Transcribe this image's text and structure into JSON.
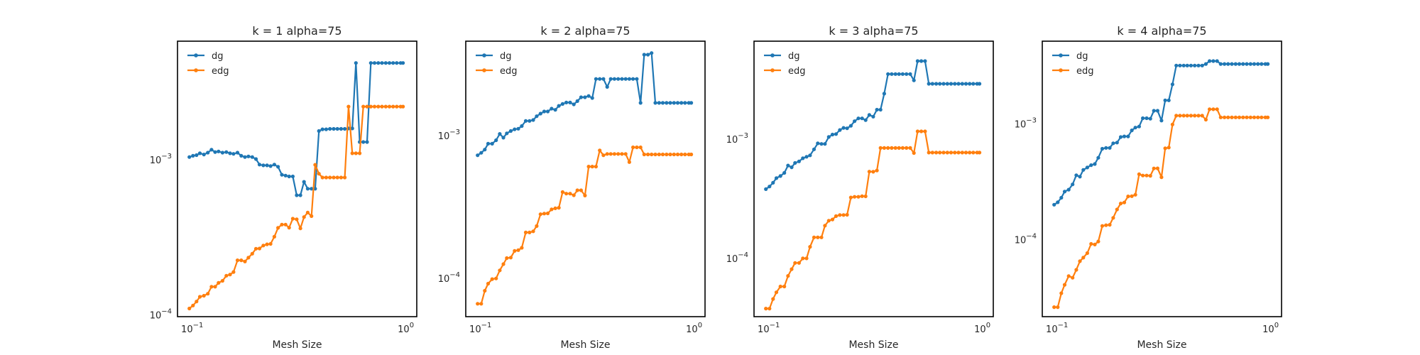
{
  "colors": {
    "dg": "#1f77b4",
    "edg": "#ff7f0e"
  },
  "chart_data": [
    {
      "type": "line",
      "title": "k = 1 alpha=75",
      "xlabel": "Mesh Size",
      "ylabel": "",
      "xscale": "log",
      "yscale": "log",
      "xlim": [
        0.088,
        1.16
      ],
      "ylim": [
        9.75e-05,
        0.0058
      ],
      "xticks": [
        {
          "value": 0.1,
          "label": "10^-1"
        },
        {
          "value": 1,
          "label": "10^0"
        }
      ],
      "yticks": [
        {
          "value": 0.0001,
          "label": "10^-4"
        },
        {
          "value": 0.001,
          "label": "10^-3"
        }
      ],
      "legend": "top-left",
      "grid": false,
      "x": [
        0.1,
        0.104,
        0.108,
        0.112,
        0.117,
        0.122,
        0.127,
        0.132,
        0.137,
        0.143,
        0.149,
        0.155,
        0.161,
        0.168,
        0.175,
        0.182,
        0.189,
        0.197,
        0.205,
        0.213,
        0.222,
        0.231,
        0.24,
        0.25,
        0.26,
        0.271,
        0.282,
        0.293,
        0.305,
        0.318,
        0.331,
        0.344,
        0.358,
        0.373,
        0.388,
        0.404,
        0.42,
        0.437,
        0.455,
        0.474,
        0.493,
        0.513,
        0.534,
        0.556,
        0.579,
        0.602,
        0.627,
        0.652,
        0.679,
        0.707,
        0.736,
        0.766,
        0.797,
        0.83,
        0.864,
        0.899,
        0.935,
        0.974,
        1.0
      ],
      "series": [
        {
          "name": "dg",
          "values": [
            0.00104,
            0.00106,
            0.00107,
            0.0011,
            0.00108,
            0.00111,
            0.00116,
            0.00112,
            0.00113,
            0.00111,
            0.00112,
            0.0011,
            0.00109,
            0.00111,
            0.00106,
            0.00104,
            0.00105,
            0.00104,
            0.00101,
            0.00093,
            0.00092,
            0.00092,
            0.00091,
            0.00093,
            0.0009,
            0.0008,
            0.00079,
            0.00078,
            0.00078,
            0.00059,
            0.00059,
            0.00072,
            0.00065,
            0.00065,
            0.00065,
            0.00153,
            0.00157,
            0.00157,
            0.00158,
            0.00158,
            0.00158,
            0.00158,
            0.00158,
            0.00159,
            0.00159,
            0.0042,
            0.0013,
            0.0013,
            0.0013,
            0.0042,
            0.0042,
            0.0042,
            0.0042,
            0.0042,
            0.0042,
            0.0042,
            0.0042,
            0.0042,
            0.0042
          ]
        },
        {
          "name": "edg",
          "values": [
            0.00011,
            0.000115,
            0.000122,
            0.000131,
            0.000133,
            0.000137,
            0.000152,
            0.000152,
            0.000161,
            0.000166,
            0.000179,
            0.000182,
            0.000189,
            0.000225,
            0.000225,
            0.000221,
            0.000234,
            0.000248,
            0.000267,
            0.000268,
            0.00028,
            0.000285,
            0.000287,
            0.000319,
            0.000364,
            0.000382,
            0.000382,
            0.000365,
            0.000417,
            0.000413,
            0.000361,
            0.000427,
            0.000457,
            0.000433,
            0.000927,
            0.000812,
            0.000768,
            0.000768,
            0.000768,
            0.000768,
            0.000768,
            0.000768,
            0.000768,
            0.0022,
            0.0011,
            0.0011,
            0.0011,
            0.0022,
            0.0022,
            0.0022,
            0.0022,
            0.0022,
            0.0022,
            0.0022,
            0.0022,
            0.0022,
            0.0022,
            0.0022,
            0.0022
          ]
        }
      ]
    },
    {
      "type": "line",
      "title": "k = 2 alpha=75",
      "xlabel": "Mesh Size",
      "ylabel": "",
      "xscale": "log",
      "yscale": "log",
      "xlim": [
        0.088,
        1.16
      ],
      "ylim": [
        5.4e-05,
        0.0046
      ],
      "xticks": [
        {
          "value": 0.1,
          "label": "10^-1"
        },
        {
          "value": 1,
          "label": "10^0"
        }
      ],
      "yticks": [
        {
          "value": 0.0001,
          "label": "10^-4"
        },
        {
          "value": 0.001,
          "label": "10^-3"
        }
      ],
      "legend": "top-left",
      "grid": false,
      "x": [
        0.1,
        0.104,
        0.108,
        0.112,
        0.117,
        0.122,
        0.127,
        0.132,
        0.137,
        0.143,
        0.149,
        0.155,
        0.161,
        0.168,
        0.175,
        0.182,
        0.189,
        0.197,
        0.205,
        0.213,
        0.222,
        0.231,
        0.24,
        0.25,
        0.26,
        0.271,
        0.282,
        0.293,
        0.305,
        0.318,
        0.331,
        0.344,
        0.358,
        0.373,
        0.388,
        0.404,
        0.42,
        0.437,
        0.455,
        0.474,
        0.493,
        0.513,
        0.534,
        0.556,
        0.579,
        0.602,
        0.627,
        0.652,
        0.679,
        0.707,
        0.736,
        0.766,
        0.797,
        0.83,
        0.864,
        0.899,
        0.935,
        0.974,
        1.0
      ],
      "series": [
        {
          "name": "dg",
          "values": [
            0.00073,
            0.00076,
            0.0008,
            0.00088,
            0.00088,
            0.00093,
            0.00103,
            0.00097,
            0.00104,
            0.00108,
            0.00111,
            0.00112,
            0.00117,
            0.00127,
            0.00127,
            0.00129,
            0.00137,
            0.00143,
            0.00148,
            0.00148,
            0.00155,
            0.00152,
            0.00162,
            0.00167,
            0.00171,
            0.00171,
            0.00166,
            0.00175,
            0.00186,
            0.00186,
            0.0019,
            0.00184,
            0.0025,
            0.0025,
            0.0025,
            0.0022,
            0.0025,
            0.0025,
            0.0025,
            0.0025,
            0.0025,
            0.0025,
            0.0025,
            0.0025,
            0.0017,
            0.0037,
            0.0037,
            0.0038,
            0.0017,
            0.0017,
            0.0017,
            0.0017,
            0.0017,
            0.0017,
            0.0017,
            0.0017,
            0.0017,
            0.0017,
            0.0017
          ]
        },
        {
          "name": "edg",
          "values": [
            6.65e-05,
            6.65e-05,
            8.2e-05,
            9.2e-05,
            9.9e-05,
            0.0001,
            0.000114,
            0.000126,
            0.000139,
            0.00014,
            0.000156,
            0.000158,
            0.000164,
            0.00021,
            0.00021,
            0.000214,
            0.000233,
            0.000282,
            0.000285,
            0.000286,
            0.000305,
            0.00031,
            0.000313,
            0.000403,
            0.000393,
            0.000393,
            0.000383,
            0.000415,
            0.000415,
            0.000381,
            0.000608,
            0.000608,
            0.000608,
            0.00079,
            0.00073,
            0.000746,
            0.000746,
            0.000746,
            0.000746,
            0.000746,
            0.000746,
            0.000654,
            0.00083,
            0.00083,
            0.00083,
            0.00074,
            0.00074,
            0.00074,
            0.00074,
            0.00074,
            0.00074,
            0.00074,
            0.00074,
            0.00074,
            0.00074,
            0.00074,
            0.00074,
            0.00074,
            0.00074
          ]
        }
      ]
    },
    {
      "type": "line",
      "title": "k = 3 alpha=75",
      "xlabel": "Mesh Size",
      "ylabel": "",
      "xscale": "log",
      "yscale": "log",
      "xlim": [
        0.088,
        1.16
      ],
      "ylim": [
        3.25e-05,
        0.0066
      ],
      "xticks": [
        {
          "value": 0.1,
          "label": "10^-1"
        },
        {
          "value": 1,
          "label": "10^0"
        }
      ],
      "yticks": [
        {
          "value": 0.0001,
          "label": "10^-4"
        },
        {
          "value": 0.001,
          "label": "10^-3"
        }
      ],
      "legend": "top-left",
      "grid": false,
      "x": [
        0.1,
        0.104,
        0.108,
        0.112,
        0.117,
        0.122,
        0.127,
        0.132,
        0.137,
        0.143,
        0.149,
        0.155,
        0.161,
        0.168,
        0.175,
        0.182,
        0.189,
        0.197,
        0.205,
        0.213,
        0.222,
        0.231,
        0.24,
        0.25,
        0.26,
        0.271,
        0.282,
        0.293,
        0.305,
        0.318,
        0.331,
        0.344,
        0.358,
        0.373,
        0.388,
        0.404,
        0.42,
        0.437,
        0.455,
        0.474,
        0.493,
        0.513,
        0.534,
        0.556,
        0.579,
        0.602,
        0.627,
        0.652,
        0.679,
        0.707,
        0.736,
        0.766,
        0.797,
        0.83,
        0.864,
        0.899,
        0.935,
        0.974,
        1.0
      ],
      "series": [
        {
          "name": "dg",
          "values": [
            0.00038,
            0.0004,
            0.00043,
            0.00047,
            0.00049,
            0.00052,
            0.0006,
            0.00058,
            0.00063,
            0.00065,
            0.00069,
            0.00071,
            0.00073,
            0.00082,
            0.00092,
            0.00091,
            0.00091,
            0.00104,
            0.00109,
            0.0011,
            0.00119,
            0.00124,
            0.00123,
            0.00129,
            0.00141,
            0.00149,
            0.00149,
            0.00144,
            0.00159,
            0.00154,
            0.00176,
            0.00176,
            0.0024,
            0.0035,
            0.0035,
            0.0035,
            0.0035,
            0.0035,
            0.0035,
            0.0035,
            0.0031,
            0.0045,
            0.0045,
            0.0045,
            0.0029,
            0.0029,
            0.0029,
            0.0029,
            0.0029,
            0.0029,
            0.0029,
            0.0029,
            0.0029,
            0.0029,
            0.0029,
            0.0029,
            0.0029,
            0.0029,
            0.0029
          ]
        },
        {
          "name": "edg",
          "values": [
            3.8e-05,
            3.8e-05,
            4.57e-05,
            5.2e-05,
            5.82e-05,
            5.82e-05,
            7.13e-05,
            8.12e-05,
            9.17e-05,
            9.17e-05,
            0.0001,
            0.0001,
            0.000125,
            0.00015,
            0.00015,
            0.00015,
            0.000188,
            0.000207,
            0.000212,
            0.000226,
            0.000231,
            0.000231,
            0.000232,
            0.000324,
            0.000328,
            0.000328,
            0.000332,
            0.000331,
            0.000533,
            0.000532,
            0.000545,
            0.000841,
            0.000841,
            0.000841,
            0.000841,
            0.000841,
            0.000841,
            0.000841,
            0.000841,
            0.000841,
            0.000763,
            0.00116,
            0.00116,
            0.00116,
            0.00077,
            0.00077,
            0.00077,
            0.00077,
            0.00077,
            0.00077,
            0.00077,
            0.00077,
            0.00077,
            0.00077,
            0.00077,
            0.00077,
            0.00077,
            0.00077,
            0.00077
          ]
        }
      ]
    },
    {
      "type": "line",
      "title": "k = 4 alpha=75",
      "xlabel": "Mesh Size",
      "ylabel": "",
      "xscale": "log",
      "yscale": "log",
      "xlim": [
        0.088,
        1.16
      ],
      "ylim": [
        2.15e-05,
        0.0052
      ],
      "xticks": [
        {
          "value": 0.1,
          "label": "10^-1"
        },
        {
          "value": 1,
          "label": "10^0"
        }
      ],
      "yticks": [
        {
          "value": 0.0001,
          "label": "10^-4"
        },
        {
          "value": 0.001,
          "label": "10^-3"
        }
      ],
      "legend": "top-left",
      "grid": false,
      "x": [
        0.1,
        0.104,
        0.108,
        0.112,
        0.117,
        0.122,
        0.127,
        0.132,
        0.137,
        0.143,
        0.149,
        0.155,
        0.161,
        0.168,
        0.175,
        0.182,
        0.189,
        0.197,
        0.205,
        0.213,
        0.222,
        0.231,
        0.24,
        0.25,
        0.26,
        0.271,
        0.282,
        0.293,
        0.305,
        0.318,
        0.331,
        0.344,
        0.358,
        0.373,
        0.388,
        0.404,
        0.42,
        0.437,
        0.455,
        0.474,
        0.493,
        0.513,
        0.534,
        0.556,
        0.579,
        0.602,
        0.627,
        0.652,
        0.679,
        0.707,
        0.736,
        0.766,
        0.797,
        0.83,
        0.864,
        0.899,
        0.935,
        0.974,
        1.0
      ],
      "series": [
        {
          "name": "dg",
          "values": [
            0.0002,
            0.00021,
            0.00023,
            0.00026,
            0.00027,
            0.0003,
            0.00036,
            0.00035,
            0.0004,
            0.00042,
            0.00044,
            0.00045,
            0.00051,
            0.00061,
            0.00062,
            0.00062,
            0.00068,
            0.00069,
            0.00077,
            0.00078,
            0.00078,
            0.00088,
            0.00093,
            0.00095,
            0.00112,
            0.00112,
            0.00111,
            0.0013,
            0.0013,
            0.00107,
            0.0016,
            0.0016,
            0.0022,
            0.0032,
            0.0032,
            0.0032,
            0.0032,
            0.0032,
            0.0032,
            0.0032,
            0.0032,
            0.0033,
            0.0035,
            0.0035,
            0.0035,
            0.0033,
            0.0033,
            0.0033,
            0.0033,
            0.0033,
            0.0033,
            0.0033,
            0.0033,
            0.0033,
            0.0033,
            0.0033,
            0.0033,
            0.0033,
            0.0033
          ]
        },
        {
          "name": "edg",
          "values": [
            2.6e-05,
            2.6e-05,
            3.43e-05,
            4.06e-05,
            4.83e-05,
            4.67e-05,
            5.47e-05,
            6.49e-05,
            6.97e-05,
            7.62e-05,
            9.16e-05,
            9.05e-05,
            9.62e-05,
            0.000131,
            0.000133,
            0.000134,
            0.000154,
            0.000182,
            0.000205,
            0.000209,
            0.000236,
            0.000237,
            0.000244,
            0.000367,
            0.000358,
            0.000358,
            0.000356,
            0.000412,
            0.000413,
            0.000346,
            0.000615,
            0.000625,
            0.00099,
            0.00118,
            0.00118,
            0.00118,
            0.00118,
            0.00118,
            0.00118,
            0.00118,
            0.00118,
            0.00109,
            0.00134,
            0.00134,
            0.00134,
            0.00114,
            0.00114,
            0.00114,
            0.00114,
            0.00114,
            0.00114,
            0.00114,
            0.00114,
            0.00114,
            0.00114,
            0.00114,
            0.00114,
            0.00114,
            0.00114
          ]
        }
      ]
    }
  ]
}
